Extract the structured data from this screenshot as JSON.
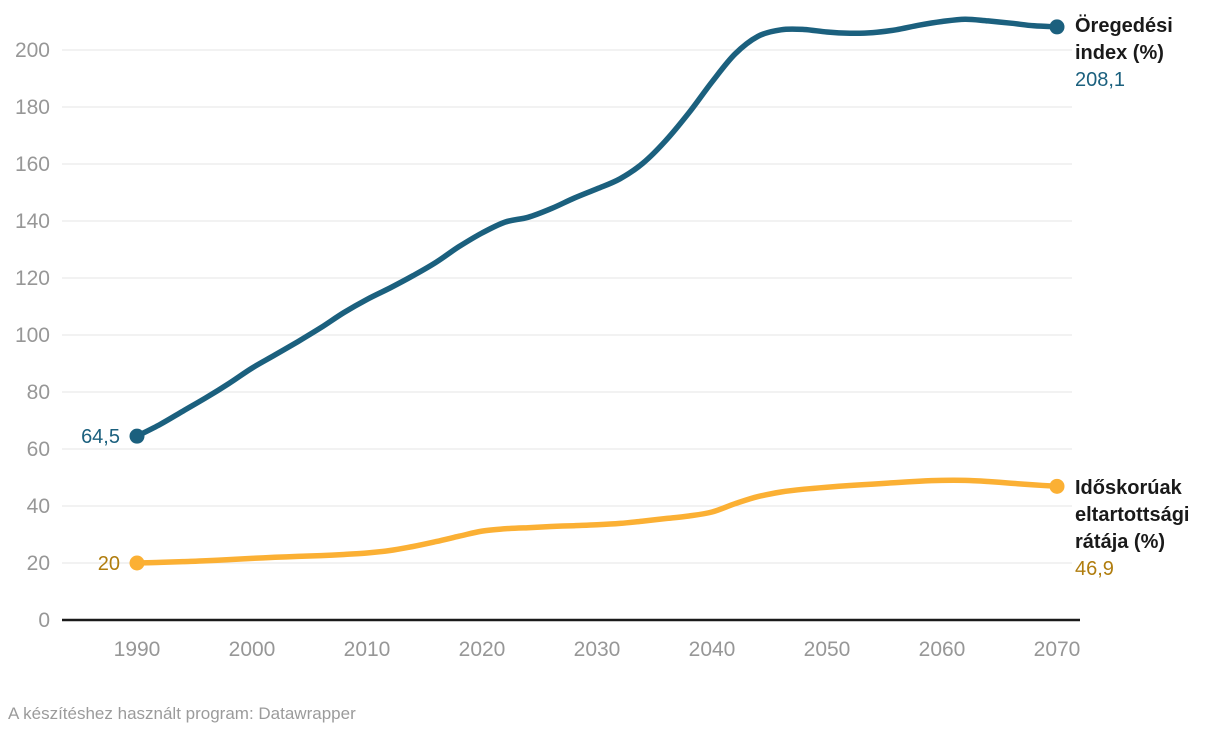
{
  "chart_data": {
    "type": "line",
    "title": "",
    "xlabel": "",
    "ylabel": "",
    "grid": "horizontal-only",
    "legend_position": "inline-right-of-lines",
    "number_format": "decimal-comma",
    "x_ticks": [
      "1990",
      "2000",
      "2010",
      "2020",
      "2030",
      "2040",
      "2050",
      "2060",
      "2070"
    ],
    "y_ticks": [
      0,
      20,
      40,
      60,
      80,
      100,
      120,
      140,
      160,
      180,
      200
    ],
    "x_range": [
      1990,
      2070
    ],
    "y_grid_range": [
      0,
      200
    ],
    "x": [
      1990,
      1992,
      1994,
      1996,
      1998,
      2000,
      2002,
      2004,
      2006,
      2008,
      2010,
      2012,
      2014,
      2016,
      2018,
      2020,
      2022,
      2024,
      2026,
      2028,
      2030,
      2032,
      2034,
      2036,
      2038,
      2040,
      2042,
      2044,
      2046,
      2048,
      2050,
      2052,
      2054,
      2056,
      2058,
      2060,
      2062,
      2064,
      2066,
      2068,
      2070
    ],
    "series": [
      {
        "name": "Öregedési index (%)",
        "color": "#1b607e",
        "value_color": "#1b607e",
        "start_label": "64,5",
        "end_label": "208,1",
        "start_value": 64.5,
        "end_value": 208.1,
        "values": [
          64.5,
          68.6,
          73.3,
          78.0,
          83.0,
          88.4,
          93.0,
          97.7,
          102.6,
          107.9,
          112.5,
          116.5,
          120.8,
          125.5,
          131.0,
          135.8,
          139.6,
          141.3,
          144.3,
          148.0,
          151.3,
          154.8,
          160.3,
          168.3,
          178.0,
          188.8,
          198.6,
          204.8,
          207.1,
          207.2,
          206.3,
          205.9,
          206.1,
          207.1,
          208.7,
          210.0,
          210.8,
          210.2,
          209.4,
          208.5,
          208.1
        ]
      },
      {
        "name": "Időskorúak eltartottsági rátája (%)",
        "color": "#fbb034",
        "value_color": "#b07d0e",
        "start_label": "20",
        "end_label": "46,9",
        "start_value": 20,
        "end_value": 46.9,
        "values": [
          20.0,
          20.2,
          20.5,
          20.8,
          21.2,
          21.6,
          22.0,
          22.3,
          22.6,
          23.0,
          23.5,
          24.4,
          25.8,
          27.5,
          29.4,
          31.2,
          32.0,
          32.4,
          32.8,
          33.1,
          33.4,
          33.9,
          34.7,
          35.6,
          36.5,
          37.9,
          40.8,
          43.3,
          44.9,
          45.9,
          46.6,
          47.2,
          47.7,
          48.2,
          48.7,
          49.0,
          49.0,
          48.6,
          48.0,
          47.4,
          46.9
        ]
      }
    ]
  },
  "footer": {
    "text": "A készítéshez használt program: Datawrapper"
  },
  "colors": {
    "background": "#ffffff",
    "grid": "#e9e9e9",
    "axis_line": "#1a1a1a",
    "tick_label": "#979797",
    "footer_text": "#9b9b9b",
    "series_name_text": "#1a1a1a"
  }
}
